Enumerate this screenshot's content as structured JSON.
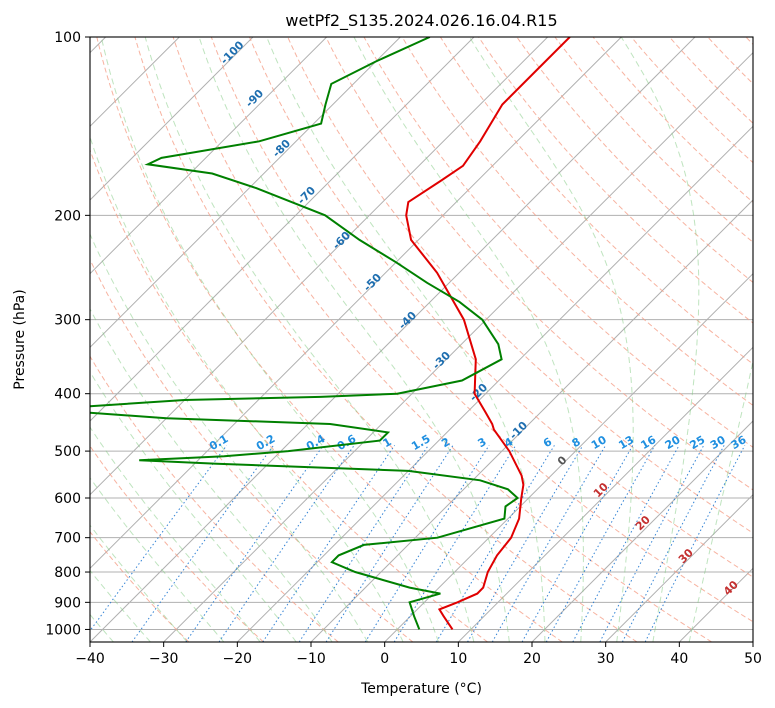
{
  "chart_data": {
    "type": "skew-t log-p",
    "title": "wetPf2_S135.2024.026.16.04.R15",
    "xlabel": "Temperature (°C)",
    "ylabel": "Pressure (hPa)",
    "xlim": [
      -40,
      50
    ],
    "ylim": [
      1050,
      100
    ],
    "y_scale": "log",
    "skew_degrees": 45,
    "grid": true,
    "x_ticks": [
      -40,
      -30,
      -20,
      -10,
      0,
      10,
      20,
      30,
      40,
      50
    ],
    "x_tick_labels": [
      "−40",
      "−30",
      "−20",
      "−10",
      "0",
      "10",
      "20",
      "30",
      "40",
      "50"
    ],
    "y_ticks": [
      1000,
      900,
      800,
      700,
      600,
      500,
      400,
      300,
      200,
      100
    ],
    "y_tick_labels": [
      "1000",
      "900",
      "800",
      "700",
      "600",
      "500",
      "400",
      "300",
      "200",
      "100"
    ],
    "series": [
      {
        "role": "temperature",
        "color": "#e00000",
        "points": [
          [
            1000,
            7.5
          ],
          [
            950,
            4.5
          ],
          [
            925,
            3.0
          ],
          [
            900,
            4.5
          ],
          [
            870,
            6.0
          ],
          [
            850,
            6.0
          ],
          [
            800,
            4.5
          ],
          [
            750,
            3.5
          ],
          [
            700,
            3.0
          ],
          [
            650,
            1.5
          ],
          [
            600,
            -1.0
          ],
          [
            570,
            -2.5
          ],
          [
            550,
            -4.0
          ],
          [
            500,
            -9.0
          ],
          [
            460,
            -14.0
          ],
          [
            450,
            -15.0
          ],
          [
            430,
            -17.5
          ],
          [
            400,
            -21.5
          ],
          [
            350,
            -26.0
          ],
          [
            300,
            -33.0
          ],
          [
            250,
            -43.0
          ],
          [
            220,
            -51.0
          ],
          [
            200,
            -55.0
          ],
          [
            190,
            -56.5
          ],
          [
            175,
            -55.0
          ],
          [
            165,
            -54.0
          ],
          [
            150,
            -55.0
          ],
          [
            130,
            -57.0
          ],
          [
            115,
            -57.0
          ],
          [
            100,
            -57.0
          ]
        ]
      },
      {
        "role": "dewpoint",
        "color": "#008000",
        "points": [
          [
            1000,
            3.0
          ],
          [
            950,
            0.5
          ],
          [
            900,
            -2.0
          ],
          [
            870,
            1.0
          ],
          [
            850,
            -4.0
          ],
          [
            800,
            -13.5
          ],
          [
            770,
            -18.0
          ],
          [
            750,
            -18.0
          ],
          [
            720,
            -16.0
          ],
          [
            700,
            -7.0
          ],
          [
            650,
            -0.5
          ],
          [
            620,
            -2.0
          ],
          [
            600,
            -1.5
          ],
          [
            580,
            -4.0
          ],
          [
            560,
            -9.0
          ],
          [
            540,
            -20.0
          ],
          [
            525,
            -47.0
          ],
          [
            518,
            -58.0
          ],
          [
            510,
            -47.0
          ],
          [
            500,
            -39.0
          ],
          [
            480,
            -28.0
          ],
          [
            465,
            -28.0
          ],
          [
            450,
            -37.0
          ],
          [
            440,
            -60.0
          ],
          [
            430,
            -72.0
          ],
          [
            420,
            -72.0
          ],
          [
            410,
            -60.0
          ],
          [
            405,
            -42.0
          ],
          [
            400,
            -32.0
          ],
          [
            380,
            -25.0
          ],
          [
            350,
            -22.5
          ],
          [
            330,
            -25.0
          ],
          [
            300,
            -30.5
          ],
          [
            280,
            -36.0
          ],
          [
            260,
            -43.0
          ],
          [
            240,
            -50.0
          ],
          [
            220,
            -58.0
          ],
          [
            200,
            -66.0
          ],
          [
            180,
            -79.0
          ],
          [
            170,
            -87.0
          ],
          [
            164,
            -97.0
          ],
          [
            160,
            -96.0
          ],
          [
            150,
            -85.0
          ],
          [
            140,
            -79.0
          ],
          [
            130,
            -81.0
          ],
          [
            120,
            -83.0
          ],
          [
            110,
            -80.0
          ],
          [
            100,
            -76.0
          ]
        ]
      }
    ],
    "dry_adiabat_labels": [
      "-100",
      "-90",
      "-80",
      "-70",
      "-60",
      "-50",
      "-40",
      "-30",
      "-20",
      "-10",
      "0",
      "10",
      "20",
      "30",
      "40"
    ],
    "mixing_ratio_labels": [
      "0.1",
      "0.2",
      "0.4",
      "0.6",
      "1",
      "1.5",
      "2",
      "3",
      "4",
      "6",
      "8",
      "10",
      "13",
      "16",
      "20",
      "25",
      "30",
      "36"
    ]
  }
}
